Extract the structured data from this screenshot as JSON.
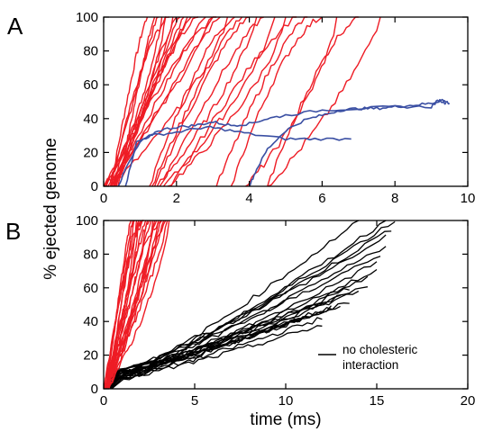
{
  "figure": {
    "shared_ylabel": "% ejected genome",
    "colors": {
      "red": "#ee1c25",
      "blue": "#3a4fa3",
      "black": "#000000"
    }
  },
  "chart_data": [
    {
      "panel": "A",
      "type": "line",
      "xlim": [
        0,
        10
      ],
      "ylim": [
        0,
        100
      ],
      "xticks": [
        0,
        2,
        4,
        6,
        8,
        10
      ],
      "yticks": [
        0,
        20,
        40,
        60,
        80,
        100
      ],
      "xlabel": "",
      "ylabel": "% ejected genome",
      "grid": false,
      "red_curves_end_x": [
        1.2,
        1.4,
        1.5,
        1.6,
        1.7,
        1.8,
        1.9,
        2.0,
        2.1,
        2.2,
        2.3,
        2.4,
        2.6,
        2.8,
        3.0,
        3.1,
        3.2,
        3.4,
        3.6,
        3.8,
        4.0,
        4.2,
        4.4,
        4.7,
        5.0,
        5.3,
        5.6,
        6.0,
        6.4,
        7.0,
        7.6
      ],
      "series": [
        {
          "color": "#3a4fa3",
          "x": [
            0.6,
            0.9,
            1.3,
            2.0,
            2.8,
            3.2,
            4.0,
            5.0,
            5.8,
            6.8
          ],
          "y": [
            0,
            26,
            30,
            32,
            35,
            34,
            31,
            28,
            28,
            28
          ]
        },
        {
          "color": "#3a4fa3",
          "x": [
            0.4,
            0.6,
            1.0,
            1.5,
            2.0,
            2.5,
            3.0,
            3.5,
            4.0,
            4.5,
            5.0,
            6.0,
            7.0,
            8.0,
            9.0,
            9.2,
            9.4
          ],
          "y": [
            0,
            10,
            26,
            33,
            35,
            36,
            38,
            36,
            37,
            40,
            42,
            45,
            46,
            47,
            47,
            51,
            49
          ]
        },
        {
          "color": "#3a4fa3",
          "x": [
            4.0,
            4.2,
            4.5,
            5.0,
            5.5,
            6.0,
            6.5,
            7.0,
            7.5,
            8.0,
            8.5,
            9.0,
            9.3,
            9.5
          ],
          "y": [
            0,
            10,
            22,
            33,
            39,
            42,
            45,
            46,
            46,
            47,
            48,
            49,
            51,
            49
          ]
        }
      ]
    },
    {
      "panel": "B",
      "type": "line",
      "xlim": [
        0,
        20
      ],
      "ylim": [
        0,
        100
      ],
      "xticks": [
        0,
        5,
        10,
        15,
        20
      ],
      "yticks": [
        0,
        20,
        40,
        60,
        80,
        100
      ],
      "xlabel": "time (ms)",
      "ylabel": "% ejected genome",
      "grid": false,
      "legend": {
        "entries": [
          {
            "label_lines": [
              "no cholesteric",
              "interaction"
            ],
            "color": "#000000"
          }
        ],
        "position": "lower-right"
      },
      "red_curves_end_x": [
        1.5,
        1.6,
        1.7,
        1.8,
        1.9,
        2.0,
        2.1,
        2.2,
        2.3,
        2.4,
        2.5,
        2.6,
        2.7,
        2.8,
        2.9,
        3.0,
        3.1,
        3.2,
        3.3,
        3.4,
        3.5,
        3.6
      ],
      "black_curves_end": [
        {
          "x": 10.5,
          "y": 40
        },
        {
          "x": 11.0,
          "y": 42
        },
        {
          "x": 11.5,
          "y": 45
        },
        {
          "x": 12.0,
          "y": 42
        },
        {
          "x": 12.5,
          "y": 48
        },
        {
          "x": 13.0,
          "y": 50
        },
        {
          "x": 13.0,
          "y": 55
        },
        {
          "x": 13.5,
          "y": 52
        },
        {
          "x": 13.5,
          "y": 60
        },
        {
          "x": 14.0,
          "y": 58
        },
        {
          "x": 14.5,
          "y": 62
        },
        {
          "x": 14.5,
          "y": 66
        },
        {
          "x": 15.0,
          "y": 70
        },
        {
          "x": 15.0,
          "y": 75
        },
        {
          "x": 15.2,
          "y": 80
        },
        {
          "x": 15.5,
          "y": 85
        },
        {
          "x": 15.5,
          "y": 90
        },
        {
          "x": 15.8,
          "y": 95
        },
        {
          "x": 16.0,
          "y": 100
        },
        {
          "x": 14.0,
          "y": 100
        },
        {
          "x": 15.5,
          "y": 100
        },
        {
          "x": 12.0,
          "y": 38
        }
      ]
    }
  ]
}
